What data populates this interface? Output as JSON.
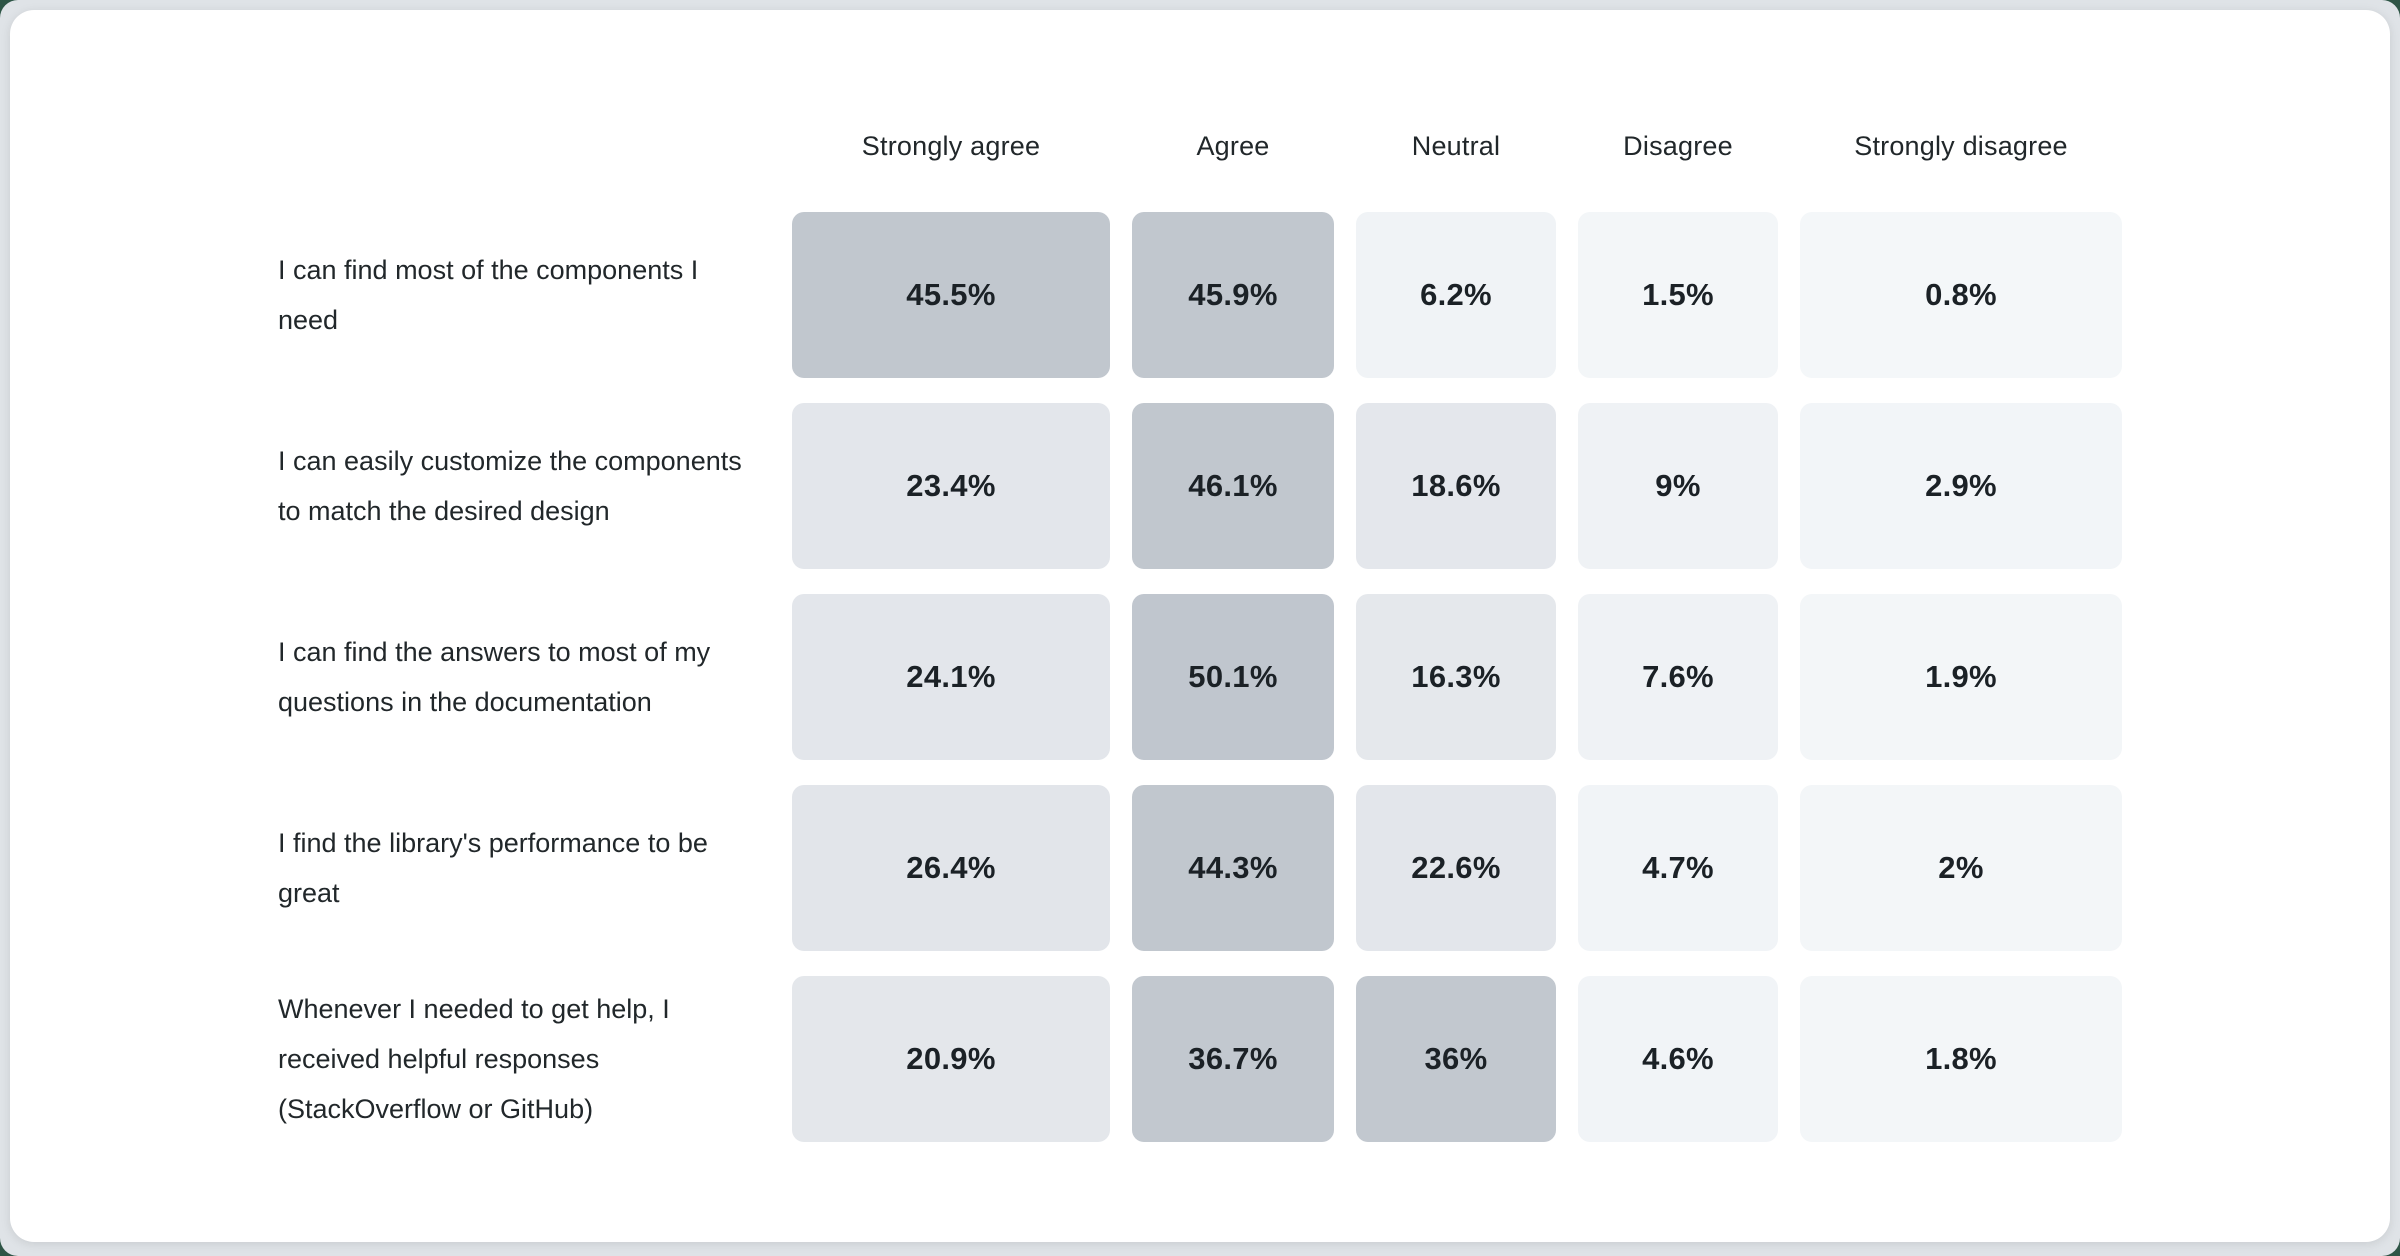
{
  "page": {
    "background_color": "#2e5546",
    "frame_color": "#dfe3e7",
    "card_color": "#ffffff",
    "text_color": "#21272a",
    "value_text_color": "#1b2126"
  },
  "chart_data": {
    "type": "heatmap",
    "title": "",
    "columns": [
      "Strongly agree",
      "Agree",
      "Neutral",
      "Disagree",
      "Strongly disagree"
    ],
    "rows": [
      {
        "label": "I can find most of the components I need",
        "values": [
          "45.5%",
          "45.9%",
          "6.2%",
          "1.5%",
          "0.8%"
        ],
        "numeric": [
          45.5,
          45.9,
          6.2,
          1.5,
          0.8
        ]
      },
      {
        "label": "I can easily customize the components to match the desired design",
        "values": [
          "23.4%",
          "46.1%",
          "18.6%",
          "9%",
          "2.9%"
        ],
        "numeric": [
          23.4,
          46.1,
          18.6,
          9,
          2.9
        ]
      },
      {
        "label": "I can find the answers to most of my questions in the documentation",
        "values": [
          "24.1%",
          "50.1%",
          "16.3%",
          "7.6%",
          "1.9%"
        ],
        "numeric": [
          24.1,
          50.1,
          16.3,
          7.6,
          1.9
        ]
      },
      {
        "label": "I find the library's performance to be great",
        "values": [
          "26.4%",
          "44.3%",
          "22.6%",
          "4.7%",
          "2%"
        ],
        "numeric": [
          26.4,
          44.3,
          22.6,
          4.7,
          2
        ]
      },
      {
        "label": "Whenever I needed to get help, I received helpful responses (StackOverflow or GitHub)",
        "values": [
          "20.9%",
          "36.7%",
          "36%",
          "4.6%",
          "1.8%"
        ],
        "numeric": [
          20.9,
          36.7,
          36,
          4.6,
          1.8
        ]
      }
    ],
    "color_scale": {
      "anchors": [
        [
          0,
          "#f4f7f9"
        ],
        [
          10,
          "#eef1f4"
        ],
        [
          16,
          "#e5e8ec"
        ],
        [
          27,
          "#e2e5ea"
        ],
        [
          36,
          "#c2c8cf"
        ],
        [
          50.1,
          "#c0c6ce"
        ]
      ]
    },
    "legend_position": "none",
    "grid": false
  }
}
